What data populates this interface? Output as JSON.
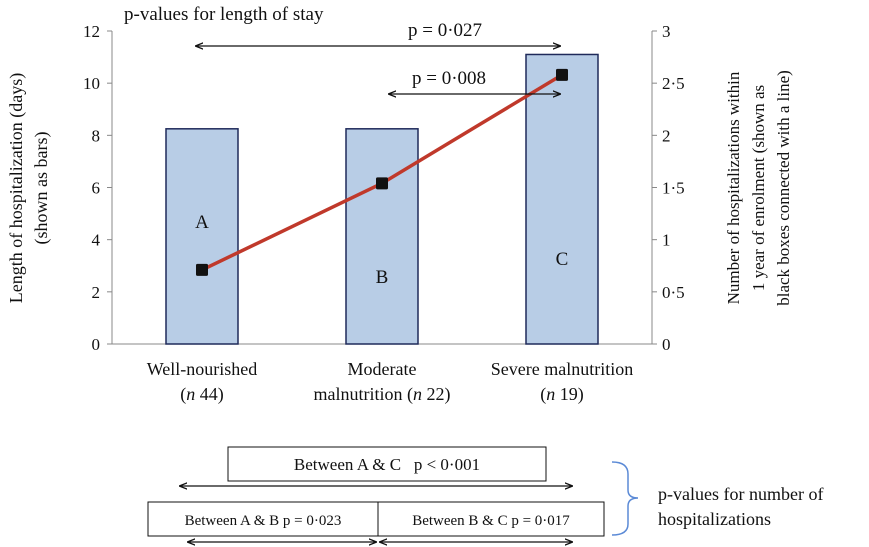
{
  "chart_data": {
    "type": "bar",
    "categories": [
      {
        "line1": "Well-nourished",
        "line2_pre": "(",
        "n_sym": "n",
        "line2_post": " 44)"
      },
      {
        "line1": "Moderate",
        "line2_pre": "malnutrition (",
        "n_sym": "n",
        "line2_post": " 22)"
      },
      {
        "line1": "Severe malnutrition",
        "line2_pre": "(",
        "n_sym": "n",
        "line2_post": " 19)"
      }
    ],
    "series": [
      {
        "name": "Length of hospitalization (days)",
        "kind": "bar",
        "axis": "left",
        "values": [
          8.25,
          8.25,
          11.1
        ]
      },
      {
        "name": "Number of hospitalizations within 1 year of enrolment",
        "kind": "line",
        "axis": "right",
        "values": [
          0.71,
          1.54,
          2.58
        ]
      }
    ],
    "bar_letters": [
      "A",
      "B",
      "C"
    ],
    "left_axis": {
      "ylim": [
        0,
        12
      ],
      "ticks": [
        "0",
        "2",
        "4",
        "6",
        "8",
        "10",
        "12"
      ],
      "label_line1": "Length of hospitalization (days)",
      "label_line2": "(shown as bars)"
    },
    "right_axis": {
      "ylim": [
        0,
        3
      ],
      "ticks": [
        "0",
        "0·5",
        "1",
        "1·5",
        "2",
        "2·5",
        "3"
      ],
      "label_line1": "Number of hospitalizations within",
      "label_line2": "1 year of enrolment (shown as",
      "label_line3": "black boxes connected with a line)"
    },
    "top_title": "p-values for length of stay",
    "top_annotations": [
      {
        "text": "p = 0·027",
        "from": "A",
        "to": "C"
      },
      {
        "text": "p = 0·008",
        "from": "B",
        "to": "C"
      }
    ],
    "bottom_annotations": {
      "ac": "Between A & C   p < 0·001",
      "ab": "Between A & B p = 0·023",
      "bc": "Between B & C p = 0·017",
      "brace_label_line1": "p-values for number of",
      "brace_label_line2": "hospitalizations"
    },
    "colors": {
      "bar_fill": "#b8cde6",
      "bar_stroke": "#1f2a5a",
      "line": "#c0392b",
      "marker": "#111111",
      "brace": "#5b8ad6"
    }
  }
}
